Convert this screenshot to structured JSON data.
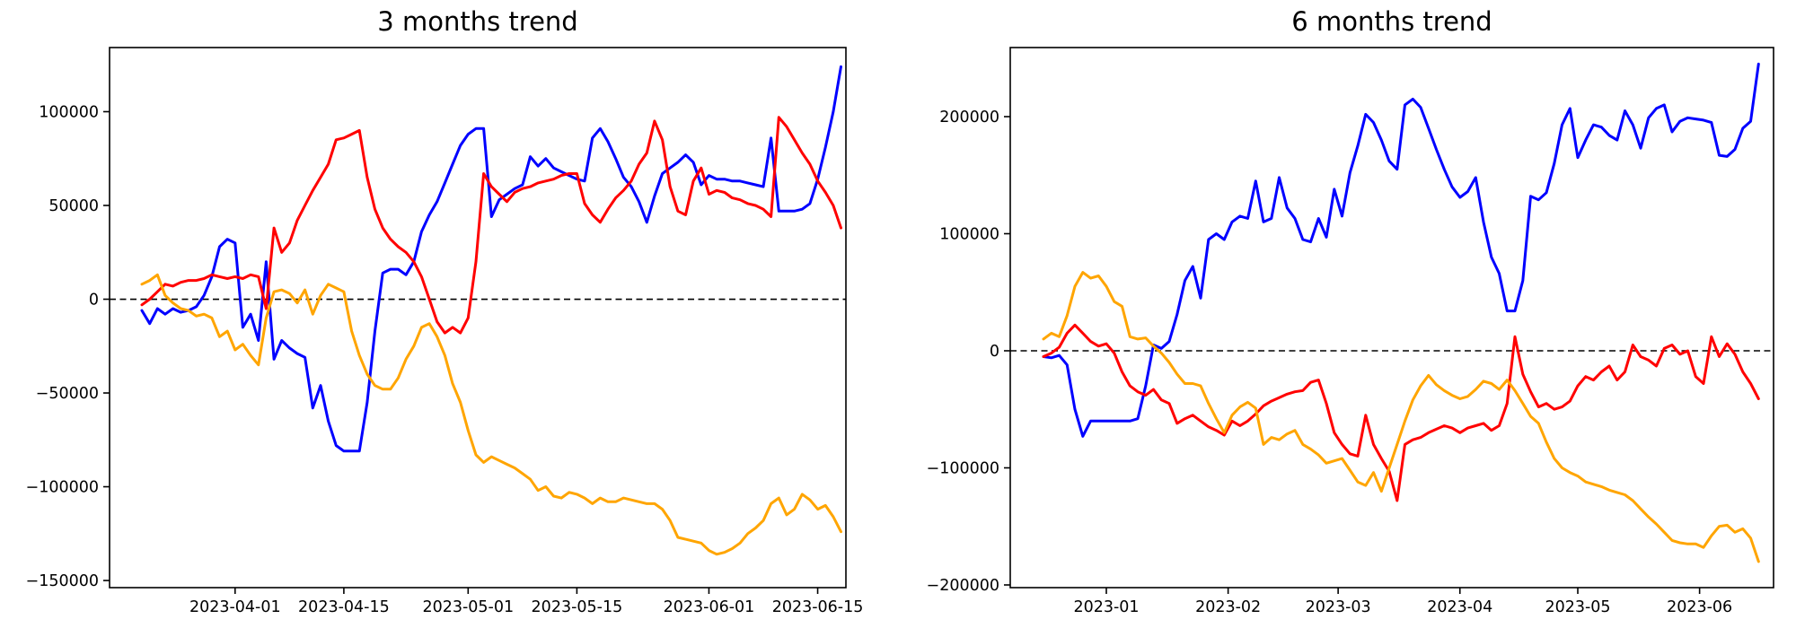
{
  "figure": {
    "background": "#ffffff",
    "axis_color": "#000000",
    "zero_line": {
      "color": "#000000",
      "style": "dashed"
    }
  },
  "chart_data": [
    {
      "type": "line",
      "title": "3 months trend",
      "x_start_date": "2023-03-20",
      "step_days": 1,
      "x_tick_labels": [
        "2023-04-01",
        "2023-04-15",
        "2023-05-01",
        "2023-05-15",
        "2023-06-01",
        "2023-06-15"
      ],
      "x_tick_days": [
        12,
        26,
        42,
        56,
        73,
        87
      ],
      "y_tick_values": [
        100000,
        50000,
        0,
        -50000,
        -100000,
        -150000
      ],
      "y_tick_labels": [
        "100000",
        "50000",
        "0",
        "−50000",
        "−100000",
        "−150000"
      ],
      "ylim": [
        -153800,
        134200
      ],
      "grid": false,
      "legend": null,
      "zero_line": true,
      "series": [
        {
          "name": "blue",
          "color": "#0000ff",
          "values": [
            -6000,
            -13000,
            -5000,
            -8000,
            -5000,
            -7000,
            -6000,
            -4000,
            2000,
            12000,
            28000,
            32000,
            30000,
            -15000,
            -8000,
            -22000,
            20000,
            -32000,
            -22000,
            -26000,
            -29000,
            -31000,
            -58000,
            -46000,
            -65000,
            -78000,
            -81000,
            -81000,
            -81000,
            -55000,
            -17000,
            14000,
            16000,
            16000,
            13000,
            20000,
            36000,
            45000,
            52000,
            62000,
            72000,
            82000,
            88000,
            91000,
            91000,
            44000,
            53000,
            56000,
            59000,
            61000,
            76000,
            71000,
            75000,
            70000,
            68000,
            66000,
            64000,
            63000,
            86000,
            91000,
            84000,
            75000,
            65000,
            60000,
            52000,
            41000,
            55000,
            67000,
            70000,
            73000,
            77000,
            73000,
            61000,
            66000,
            64000,
            64000,
            63000,
            63000,
            62000,
            61000,
            60000,
            86000,
            47000,
            47000,
            47000,
            48000,
            51000,
            64000,
            81000,
            100000,
            124000
          ]
        },
        {
          "name": "red",
          "color": "#ff0000",
          "values": [
            -3000,
            0,
            4000,
            8000,
            7000,
            9000,
            10000,
            10000,
            11000,
            13000,
            12000,
            11000,
            12000,
            11000,
            13000,
            12000,
            -5000,
            38000,
            25000,
            30000,
            42000,
            50000,
            58000,
            65000,
            72000,
            85000,
            86000,
            88000,
            90000,
            65000,
            48000,
            38000,
            32000,
            28000,
            25000,
            20000,
            12000,
            0,
            -12000,
            -18000,
            -15000,
            -18000,
            -10000,
            20000,
            67000,
            60000,
            56000,
            52000,
            57000,
            59000,
            60000,
            62000,
            63000,
            64000,
            66000,
            67000,
            67000,
            51000,
            45000,
            41000,
            48000,
            54000,
            58000,
            63000,
            72000,
            78000,
            95000,
            85000,
            60000,
            47000,
            45000,
            63000,
            70000,
            56000,
            58000,
            57000,
            54000,
            53000,
            51000,
            50000,
            48000,
            44000,
            97000,
            92000,
            85000,
            78000,
            72000,
            63000,
            57000,
            50000,
            38000
          ]
        },
        {
          "name": "orange",
          "color": "#ffa500",
          "values": [
            8000,
            10000,
            13000,
            2000,
            -2000,
            -5000,
            -6000,
            -9000,
            -8000,
            -10000,
            -20000,
            -17000,
            -27000,
            -24000,
            -30000,
            -35000,
            -10000,
            4000,
            5000,
            3000,
            -2000,
            5000,
            -8000,
            2000,
            8000,
            6000,
            4000,
            -17000,
            -30000,
            -40000,
            -46000,
            -48000,
            -48000,
            -42000,
            -32000,
            -25000,
            -15000,
            -13000,
            -20000,
            -30000,
            -45000,
            -55000,
            -70000,
            -83000,
            -87000,
            -84000,
            -86000,
            -88000,
            -90000,
            -93000,
            -96000,
            -102000,
            -100000,
            -105000,
            -106000,
            -103000,
            -104000,
            -106000,
            -109000,
            -106000,
            -108000,
            -108000,
            -106000,
            -107000,
            -108000,
            -109000,
            -109000,
            -112000,
            -118000,
            -127000,
            -128000,
            -129000,
            -130000,
            -134000,
            -136000,
            -135000,
            -133000,
            -130000,
            -125000,
            -122000,
            -118000,
            -109000,
            -106000,
            -115000,
            -112000,
            -104000,
            -107000,
            -112000,
            -110000,
            -116000,
            -124000
          ]
        }
      ]
    },
    {
      "type": "line",
      "title": "6 months trend",
      "x_start_date": "2022-12-16",
      "step_days": 2,
      "x_tick_labels": [
        "2023-01",
        "2023-02",
        "2023-03",
        "2023-04",
        "2023-05",
        "2023-06"
      ],
      "x_tick_days": [
        16,
        47,
        75,
        106,
        136,
        167
      ],
      "y_tick_values": [
        200000,
        100000,
        0,
        -100000,
        -200000
      ],
      "y_tick_labels": [
        "200000",
        "100000",
        "0",
        "−100000",
        "−200000"
      ],
      "ylim": [
        -202300,
        259000
      ],
      "grid": false,
      "legend": null,
      "zero_line": true,
      "series": [
        {
          "name": "blue",
          "color": "#0000ff",
          "values": [
            -5000,
            -6000,
            -4000,
            -12000,
            -50000,
            -73000,
            -60000,
            -60000,
            -60000,
            -60000,
            -60000,
            -60000,
            -58000,
            -30000,
            5000,
            2000,
            8000,
            31000,
            60000,
            72000,
            45000,
            95000,
            100000,
            95000,
            110000,
            115000,
            113000,
            145000,
            110000,
            113000,
            148000,
            122000,
            113000,
            95000,
            93000,
            113000,
            97000,
            138000,
            115000,
            152000,
            175000,
            202000,
            195000,
            180000,
            162000,
            155000,
            210000,
            215000,
            208000,
            190000,
            172000,
            155000,
            140000,
            131000,
            136000,
            148000,
            110000,
            80000,
            66000,
            34000,
            34000,
            60000,
            132000,
            129000,
            135000,
            160000,
            193000,
            207000,
            165000,
            180000,
            193000,
            191000,
            184000,
            180000,
            205000,
            193000,
            173000,
            199000,
            207000,
            210000,
            187000,
            196000,
            199000,
            198000,
            197000,
            195000,
            167000,
            166000,
            172000,
            190000,
            196000,
            245000
          ]
        },
        {
          "name": "red",
          "color": "#ff0000",
          "values": [
            -5000,
            -2000,
            3000,
            15000,
            22000,
            15000,
            8000,
            4000,
            6000,
            -2000,
            -18000,
            -30000,
            -35000,
            -38000,
            -33000,
            -42000,
            -45000,
            -62000,
            -58000,
            -55000,
            -60000,
            -65000,
            -68000,
            -72000,
            -60000,
            -64000,
            -60000,
            -54000,
            -47000,
            -43000,
            -40000,
            -37000,
            -35000,
            -34000,
            -27000,
            -25000,
            -45000,
            -70000,
            -80000,
            -88000,
            -90000,
            -55000,
            -80000,
            -92000,
            -103000,
            -128000,
            -80000,
            -76000,
            -74000,
            -70000,
            -67000,
            -64000,
            -66000,
            -70000,
            -66000,
            -64000,
            -62000,
            -68000,
            -64000,
            -45000,
            12000,
            -20000,
            -35000,
            -48000,
            -45000,
            -50000,
            -48000,
            -43000,
            -30000,
            -22000,
            -25000,
            -18000,
            -13000,
            -25000,
            -18000,
            5000,
            -5000,
            -8000,
            -13000,
            2000,
            5000,
            -3000,
            0,
            -22000,
            -28000,
            12000,
            -5000,
            6000,
            -3000,
            -18000,
            -28000,
            -41000
          ]
        },
        {
          "name": "orange",
          "color": "#ffa500",
          "values": [
            10000,
            15000,
            12000,
            30000,
            55000,
            67000,
            62000,
            64000,
            55000,
            42000,
            38000,
            12000,
            10000,
            11000,
            4000,
            -2000,
            -10000,
            -20000,
            -28000,
            -28000,
            -30000,
            -45000,
            -58000,
            -70000,
            -55000,
            -48000,
            -44000,
            -49000,
            -80000,
            -74000,
            -76000,
            -71000,
            -68000,
            -80000,
            -84000,
            -89000,
            -96000,
            -94000,
            -92000,
            -102000,
            -112000,
            -115000,
            -104000,
            -120000,
            -100000,
            -80000,
            -60000,
            -42000,
            -30000,
            -21000,
            -29000,
            -34000,
            -38000,
            -41000,
            -39000,
            -33000,
            -26000,
            -28000,
            -33000,
            -25000,
            -34000,
            -45000,
            -56000,
            -62000,
            -78000,
            -92000,
            -100000,
            -104000,
            -107000,
            -112000,
            -114000,
            -116000,
            -119000,
            -121000,
            -123000,
            -128000,
            -135000,
            -142000,
            -148000,
            -155000,
            -162000,
            -164000,
            -165000,
            -165000,
            -168000,
            -158000,
            -150000,
            -149000,
            -155000,
            -152000,
            -160000,
            -180000
          ]
        }
      ]
    }
  ]
}
